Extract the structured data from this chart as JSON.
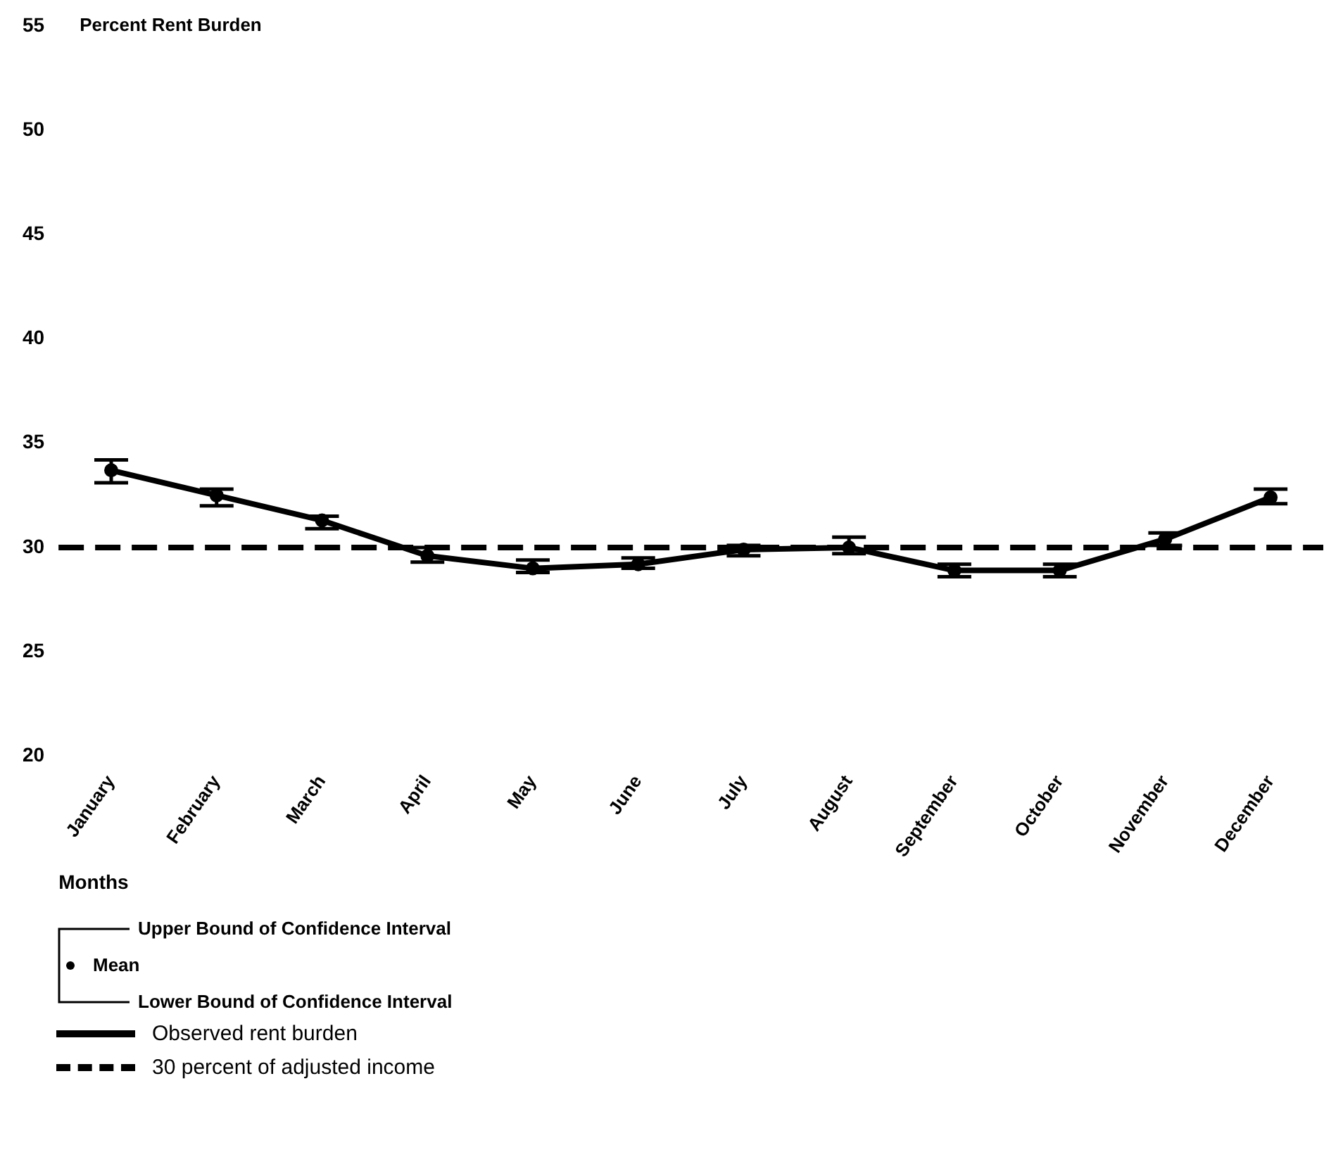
{
  "chart_data": {
    "type": "line",
    "ylabel": "Percent Rent Burden",
    "xlabel": "Months",
    "categories": [
      "January",
      "February",
      "March",
      "April",
      "May",
      "June",
      "July",
      "August",
      "September",
      "October",
      "November",
      "December"
    ],
    "series": [
      {
        "name": "Observed rent burden",
        "color": "#000000",
        "values": [
          33.7,
          32.5,
          31.3,
          29.6,
          29.0,
          29.2,
          29.9,
          30.0,
          28.9,
          28.9,
          30.4,
          32.4
        ],
        "errors": [
          [
            33.1,
            34.2
          ],
          [
            32.0,
            32.8
          ],
          [
            30.9,
            31.5
          ],
          [
            29.3,
            30.0
          ],
          [
            28.8,
            29.4
          ],
          [
            29.0,
            29.5
          ],
          [
            29.6,
            30.1
          ],
          [
            29.7,
            30.5
          ],
          [
            28.6,
            29.2
          ],
          [
            28.6,
            29.2
          ],
          [
            30.1,
            30.7
          ],
          [
            32.1,
            32.8
          ]
        ]
      }
    ],
    "ref_lines": [
      {
        "axis": "y",
        "value": 30,
        "label": "30 percent of adjusted income",
        "color": "#000000",
        "line_style": "dashed"
      }
    ],
    "ylim": [
      20,
      55
    ],
    "yticks": [
      20,
      25,
      30,
      35,
      40,
      45,
      50,
      55
    ],
    "annotations": [
      "Upper Bound of Confidence Interval",
      "Mean",
      "Lower Bound of Confidence Interval"
    ],
    "marker": "circle",
    "line_style": "solid",
    "grid": false,
    "legend": "bottom left"
  }
}
